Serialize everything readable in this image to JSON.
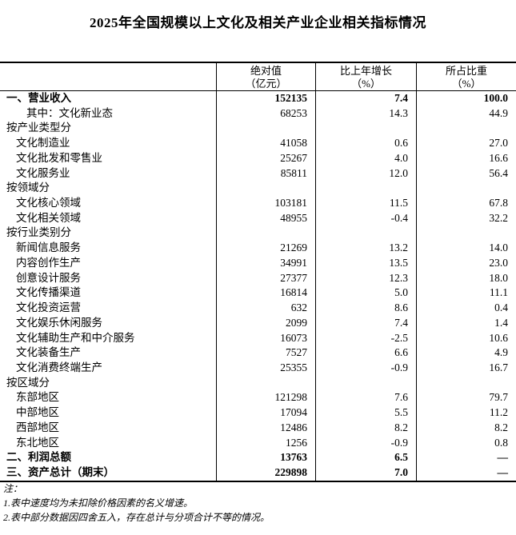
{
  "title": "2025年全国规模以上文化及相关产业企业相关指标情况",
  "table": {
    "columns": [
      {
        "line1": "绝对值",
        "line2": "（亿元）"
      },
      {
        "line1": "比上年增长",
        "line2": "（%）"
      },
      {
        "line1": "所占比重",
        "line2": "（%）"
      }
    ],
    "rows": [
      {
        "label": "一、营业收入",
        "indent": 0,
        "bold": true,
        "values": [
          "152135",
          "7.4",
          "100.0"
        ]
      },
      {
        "label": "其中：文化新业态",
        "indent": 2,
        "bold": false,
        "values": [
          "68253",
          "14.3",
          "44.9"
        ]
      },
      {
        "label": "按产业类型分",
        "indent": 0,
        "bold": false,
        "values": [
          "",
          "",
          ""
        ]
      },
      {
        "label": "文化制造业",
        "indent": 1,
        "bold": false,
        "values": [
          "41058",
          "0.6",
          "27.0"
        ]
      },
      {
        "label": "文化批发和零售业",
        "indent": 1,
        "bold": false,
        "values": [
          "25267",
          "4.0",
          "16.6"
        ]
      },
      {
        "label": "文化服务业",
        "indent": 1,
        "bold": false,
        "values": [
          "85811",
          "12.0",
          "56.4"
        ]
      },
      {
        "label": "按领域分",
        "indent": 0,
        "bold": false,
        "values": [
          "",
          "",
          ""
        ]
      },
      {
        "label": "文化核心领域",
        "indent": 1,
        "bold": false,
        "values": [
          "103181",
          "11.5",
          "67.8"
        ]
      },
      {
        "label": "文化相关领域",
        "indent": 1,
        "bold": false,
        "values": [
          "48955",
          "-0.4",
          "32.2"
        ]
      },
      {
        "label": "按行业类别分",
        "indent": 0,
        "bold": false,
        "values": [
          "",
          "",
          ""
        ]
      },
      {
        "label": "新闻信息服务",
        "indent": 1,
        "bold": false,
        "values": [
          "21269",
          "13.2",
          "14.0"
        ]
      },
      {
        "label": "内容创作生产",
        "indent": 1,
        "bold": false,
        "values": [
          "34991",
          "13.5",
          "23.0"
        ]
      },
      {
        "label": "创意设计服务",
        "indent": 1,
        "bold": false,
        "values": [
          "27377",
          "12.3",
          "18.0"
        ]
      },
      {
        "label": "文化传播渠道",
        "indent": 1,
        "bold": false,
        "values": [
          "16814",
          "5.0",
          "11.1"
        ]
      },
      {
        "label": "文化投资运营",
        "indent": 1,
        "bold": false,
        "values": [
          "632",
          "8.6",
          "0.4"
        ]
      },
      {
        "label": "文化娱乐休闲服务",
        "indent": 1,
        "bold": false,
        "values": [
          "2099",
          "7.4",
          "1.4"
        ]
      },
      {
        "label": "文化辅助生产和中介服务",
        "indent": 1,
        "bold": false,
        "values": [
          "16073",
          "-2.5",
          "10.6"
        ]
      },
      {
        "label": "文化装备生产",
        "indent": 1,
        "bold": false,
        "values": [
          "7527",
          "6.6",
          "4.9"
        ]
      },
      {
        "label": "文化消费终端生产",
        "indent": 1,
        "bold": false,
        "values": [
          "25355",
          "-0.9",
          "16.7"
        ]
      },
      {
        "label": "按区域分",
        "indent": 0,
        "bold": false,
        "values": [
          "",
          "",
          ""
        ]
      },
      {
        "label": "东部地区",
        "indent": 1,
        "bold": false,
        "values": [
          "121298",
          "7.6",
          "79.7"
        ]
      },
      {
        "label": "中部地区",
        "indent": 1,
        "bold": false,
        "values": [
          "17094",
          "5.5",
          "11.2"
        ]
      },
      {
        "label": "西部地区",
        "indent": 1,
        "bold": false,
        "values": [
          "12486",
          "8.2",
          "8.2"
        ]
      },
      {
        "label": "东北地区",
        "indent": 1,
        "bold": false,
        "values": [
          "1256",
          "-0.9",
          "0.8"
        ]
      },
      {
        "label": "二、利润总额",
        "indent": 0,
        "bold": true,
        "values": [
          "13763",
          "6.5",
          "—"
        ]
      },
      {
        "label": "三、资产总计（期末）",
        "indent": 0,
        "bold": true,
        "values": [
          "229898",
          "7.0",
          "—"
        ]
      }
    ]
  },
  "notes": {
    "heading": "注：",
    "items": [
      "1.表中速度均为未扣除价格因素的名义增速。",
      "2.表中部分数据因四舍五入，存在总计与分项合计不等的情况。"
    ]
  }
}
